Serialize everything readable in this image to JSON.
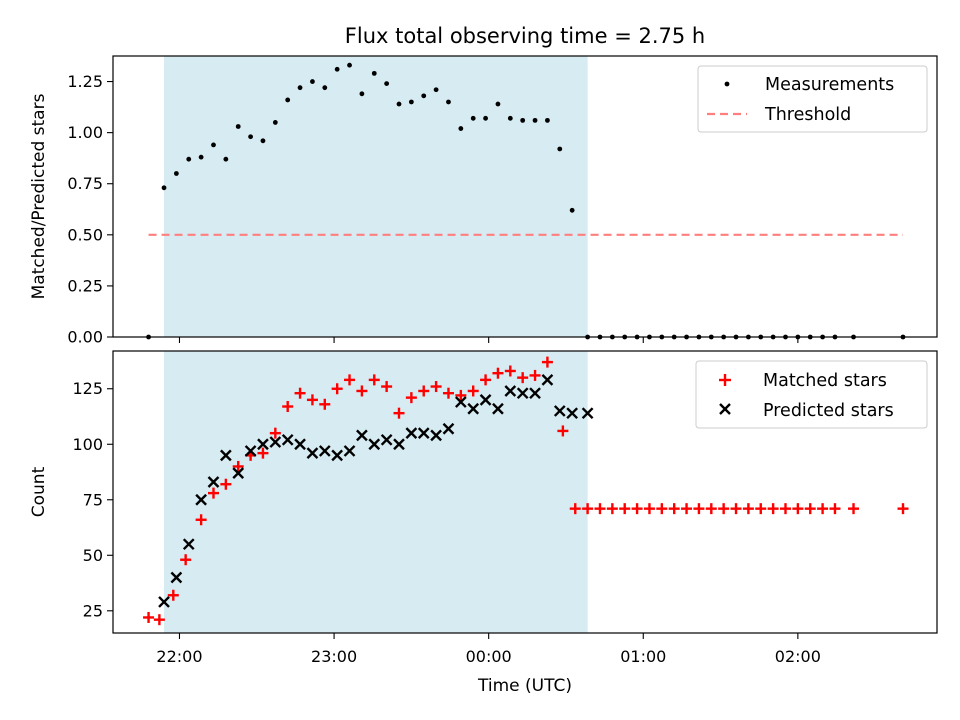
{
  "chart_data": [
    {
      "type": "scatter",
      "title": "Flux total observing time = 2.75 h",
      "xlabel": "",
      "ylabel": "Matched/Predicted stars",
      "ylim": [
        0,
        1.375
      ],
      "yticks": [
        0.0,
        0.25,
        0.5,
        0.75,
        1.0,
        1.25
      ],
      "ytick_labels": [
        "0.00",
        "0.25",
        "0.50",
        "0.75",
        "1.00",
        "1.25"
      ],
      "xlim_hours": [
        21.57,
        26.9
      ],
      "observing_window_hours": [
        21.9,
        24.64
      ],
      "legend_position": "top-right",
      "series": [
        {
          "name": "Measurements",
          "marker": "dot",
          "color": "#000000",
          "x": [
            21.8,
            21.9,
            21.98,
            22.06,
            22.14,
            22.22,
            22.3,
            22.38,
            22.46,
            22.54,
            22.62,
            22.7,
            22.78,
            22.86,
            22.94,
            23.02,
            23.1,
            23.18,
            23.26,
            23.34,
            23.42,
            23.5,
            23.58,
            23.66,
            23.74,
            23.82,
            23.9,
            23.98,
            24.06,
            24.14,
            24.22,
            24.3,
            24.38,
            24.46,
            24.54,
            24.64,
            24.72,
            24.8,
            24.88,
            24.96,
            25.04,
            25.12,
            25.2,
            25.28,
            25.36,
            25.44,
            25.52,
            25.6,
            25.68,
            25.76,
            25.84,
            25.92,
            26.0,
            26.08,
            26.16,
            26.24,
            26.36,
            26.68
          ],
          "y": [
            0.0,
            0.73,
            0.8,
            0.87,
            0.88,
            0.94,
            0.87,
            1.03,
            0.98,
            0.96,
            1.05,
            1.16,
            1.22,
            1.25,
            1.22,
            1.31,
            1.33,
            1.19,
            1.29,
            1.24,
            1.14,
            1.15,
            1.18,
            1.21,
            1.15,
            1.02,
            1.07,
            1.07,
            1.14,
            1.07,
            1.06,
            1.06,
            1.06,
            0.92,
            0.62,
            0.0,
            0.0,
            0.0,
            0.0,
            0.0,
            0.0,
            0.0,
            0.0,
            0.0,
            0.0,
            0.0,
            0.0,
            0.0,
            0.0,
            0.0,
            0.0,
            0.0,
            0.0,
            0.0,
            0.0,
            0.0,
            0.0,
            0.0
          ]
        },
        {
          "name": "Threshold",
          "marker": "dashed-line",
          "color": "#ff7f7f",
          "x": [
            21.8,
            26.68
          ],
          "y": [
            0.5,
            0.5
          ]
        }
      ]
    },
    {
      "type": "scatter",
      "title": "",
      "xlabel": "Time (UTC)",
      "ylabel": "Count",
      "ylim": [
        15,
        142
      ],
      "yticks": [
        25,
        50,
        75,
        100,
        125
      ],
      "ytick_labels": [
        "25",
        "50",
        "75",
        "100",
        "125"
      ],
      "xticks_hours": [
        22,
        23,
        24,
        25,
        26
      ],
      "xtick_labels": [
        "22:00",
        "23:00",
        "00:00",
        "01:00",
        "02:00"
      ],
      "xlim_hours": [
        21.57,
        26.9
      ],
      "observing_window_hours": [
        21.9,
        24.64
      ],
      "legend_position": "top-right",
      "series": [
        {
          "name": "Matched stars",
          "marker": "plus",
          "color": "#ff0000",
          "x": [
            21.8,
            21.87,
            21.96,
            22.04,
            22.14,
            22.22,
            22.3,
            22.38,
            22.46,
            22.54,
            22.62,
            22.7,
            22.78,
            22.86,
            22.94,
            23.02,
            23.1,
            23.18,
            23.26,
            23.34,
            23.42,
            23.5,
            23.58,
            23.66,
            23.74,
            23.82,
            23.9,
            23.98,
            24.06,
            24.14,
            24.22,
            24.3,
            24.38,
            24.48,
            24.56,
            24.64,
            24.72,
            24.8,
            24.88,
            24.96,
            25.04,
            25.12,
            25.2,
            25.28,
            25.36,
            25.44,
            25.52,
            25.6,
            25.68,
            25.76,
            25.84,
            25.92,
            26.0,
            26.08,
            26.16,
            26.24,
            26.36,
            26.68
          ],
          "y": [
            22,
            21,
            32,
            48,
            66,
            78,
            82,
            90,
            95,
            96,
            105,
            117,
            123,
            120,
            118,
            125,
            129,
            124,
            129,
            126,
            114,
            121,
            124,
            126,
            123,
            122,
            124,
            129,
            132,
            133,
            130,
            131,
            137,
            106,
            71,
            71,
            71,
            71,
            71,
            71,
            71,
            71,
            71,
            71,
            71,
            71,
            71,
            71,
            71,
            71,
            71,
            71,
            71,
            71,
            71,
            71,
            71,
            71
          ]
        },
        {
          "name": "Predicted stars",
          "marker": "x",
          "color": "#000000",
          "x": [
            21.9,
            21.98,
            22.06,
            22.14,
            22.22,
            22.3,
            22.38,
            22.46,
            22.54,
            22.62,
            22.7,
            22.78,
            22.86,
            22.94,
            23.02,
            23.1,
            23.18,
            23.26,
            23.34,
            23.42,
            23.5,
            23.58,
            23.66,
            23.74,
            23.82,
            23.9,
            23.98,
            24.06,
            24.14,
            24.22,
            24.3,
            24.38,
            24.46,
            24.54,
            24.64
          ],
          "y": [
            29,
            40,
            55,
            75,
            83,
            95,
            87,
            97,
            100,
            101,
            102,
            100,
            96,
            97,
            95,
            97,
            104,
            100,
            102,
            100,
            105,
            105,
            104,
            107,
            119,
            116,
            120,
            116,
            124,
            123,
            123,
            129,
            115,
            114,
            114
          ]
        }
      ]
    }
  ]
}
